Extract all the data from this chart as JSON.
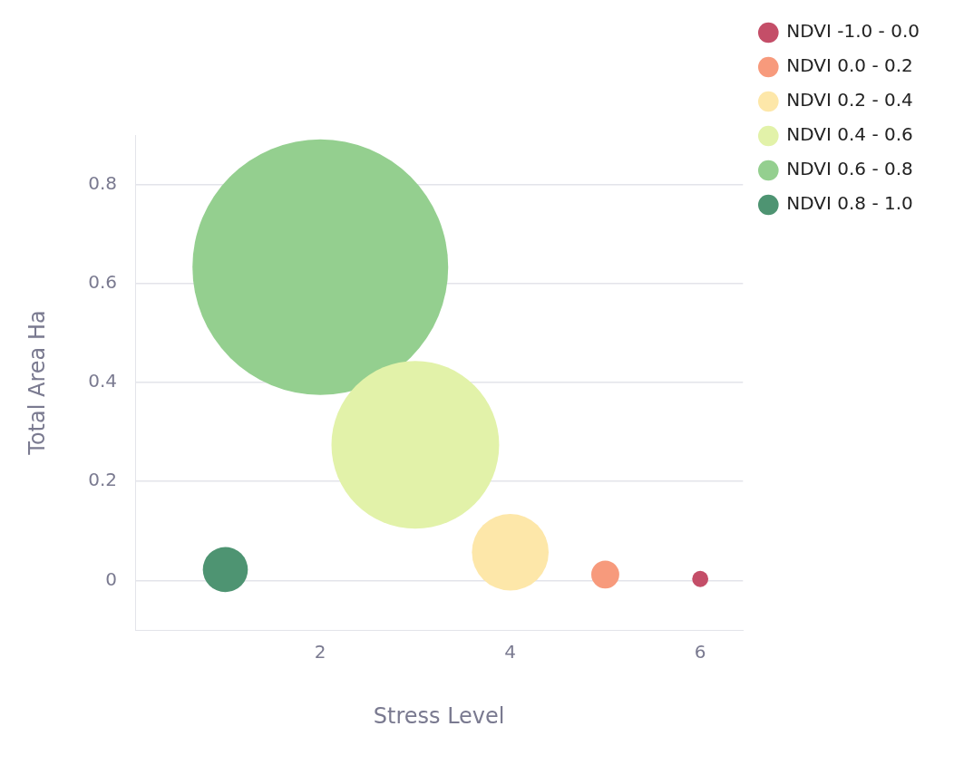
{
  "chart_data": {
    "type": "bubble",
    "xlabel": "Stress Level",
    "ylabel": "Total Area Ha",
    "xlim": [
      0.05,
      6.45
    ],
    "ylim": [
      -0.1,
      0.9
    ],
    "xticks": [
      2,
      4,
      6
    ],
    "yticks": [
      0,
      0.2,
      0.4,
      0.6,
      0.8
    ],
    "grid": "y",
    "legend": "top right",
    "series": [
      {
        "name": "NDVI -1.0 - 0.0",
        "color": "#c44e68",
        "x": [
          6
        ],
        "values": [
          0.003
        ],
        "sizes": [
          0.004
        ]
      },
      {
        "name": "NDVI 0.0 - 0.2",
        "color": "#f79a7c",
        "x": [
          5
        ],
        "values": [
          0.012
        ],
        "sizes": [
          0.012
        ]
      },
      {
        "name": "NDVI 0.2 - 0.4",
        "color": "#fde7a9",
        "x": [
          4
        ],
        "values": [
          0.057
        ],
        "sizes": [
          0.09
        ]
      },
      {
        "name": "NDVI 0.4 - 0.6",
        "color": "#e2f2a9",
        "x": [
          3
        ],
        "values": [
          0.274
        ],
        "sizes": [
          0.43
        ]
      },
      {
        "name": "NDVI 0.6 - 0.8",
        "color": "#94cf8f",
        "x": [
          2
        ],
        "values": [
          0.633
        ],
        "sizes": [
          1
        ]
      },
      {
        "name": "NDVI 0.8 - 1.0",
        "color": "#4e9472",
        "x": [
          1
        ],
        "values": [
          0.022
        ],
        "sizes": [
          0.031
        ]
      }
    ]
  }
}
